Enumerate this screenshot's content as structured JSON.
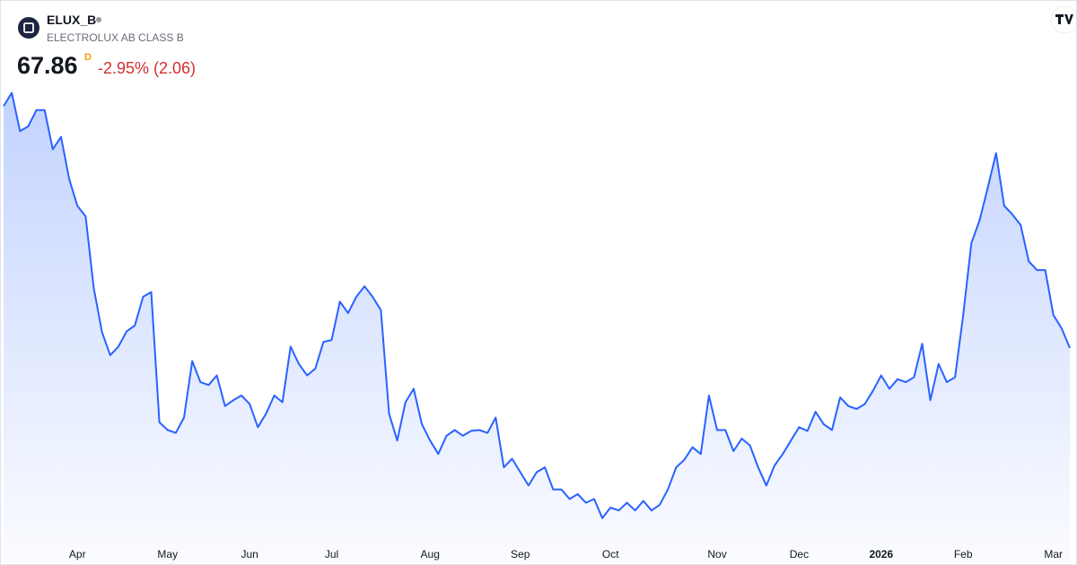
{
  "header": {
    "symbol": "ELUX_B",
    "description": "ELECTROLUX AB CLASS B",
    "price": 67.86,
    "interval": "D",
    "change": "-2.95% (2.06)"
  },
  "chart_data": {
    "type": "area",
    "categories": [
      null,
      null,
      null,
      null,
      null,
      null,
      null,
      null,
      null,
      "Apr",
      null,
      null,
      null,
      null,
      null,
      null,
      null,
      null,
      null,
      null,
      "May",
      null,
      null,
      null,
      null,
      null,
      null,
      null,
      null,
      null,
      "Jun",
      null,
      null,
      null,
      null,
      null,
      null,
      null,
      null,
      null,
      "Jul",
      null,
      null,
      null,
      null,
      null,
      null,
      null,
      null,
      null,
      null,
      null,
      "Aug",
      null,
      null,
      null,
      null,
      null,
      null,
      null,
      null,
      null,
      null,
      "Sep",
      null,
      null,
      null,
      null,
      null,
      null,
      null,
      null,
      null,
      null,
      "Oct",
      null,
      null,
      null,
      null,
      null,
      null,
      null,
      null,
      null,
      null,
      null,
      null,
      "Nov",
      null,
      null,
      null,
      null,
      null,
      null,
      null,
      null,
      null,
      "Dec",
      null,
      null,
      null,
      null,
      null,
      null,
      null,
      null,
      null,
      "2026",
      null,
      null,
      null,
      null,
      null,
      null,
      null,
      null,
      null,
      "Feb",
      null,
      null,
      null,
      null,
      null,
      null,
      null,
      null,
      null,
      null,
      "Mar",
      null,
      null
    ],
    "values": [
      93.1,
      94.5,
      90.5,
      91.0,
      92.7,
      92.7,
      88.6,
      89.9,
      85.5,
      82.7,
      81.6,
      74.1,
      69.5,
      67.1,
      68.0,
      69.6,
      70.2,
      73.2,
      73.7,
      60.1,
      59.3,
      59.0,
      60.6,
      66.5,
      64.3,
      64.0,
      65.0,
      61.8,
      62.4,
      62.9,
      62.0,
      59.6,
      61.0,
      62.9,
      62.2,
      68.0,
      66.2,
      65.0,
      65.7,
      68.5,
      68.7,
      72.7,
      71.5,
      73.2,
      74.3,
      73.2,
      71.8,
      61.0,
      58.2,
      62.2,
      63.6,
      59.9,
      58.2,
      56.8,
      58.7,
      59.3,
      58.7,
      59.2,
      59.3,
      59.0,
      60.6,
      55.4,
      56.3,
      54.9,
      53.5,
      54.9,
      55.4,
      53.1,
      53.1,
      52.1,
      52.6,
      51.7,
      52.1,
      50.1,
      51.2,
      50.9,
      51.7,
      50.9,
      51.9,
      50.9,
      51.5,
      53.1,
      55.4,
      56.2,
      57.5,
      56.8,
      62.9,
      59.3,
      59.3,
      57.1,
      58.4,
      57.7,
      55.4,
      53.5,
      55.6,
      56.8,
      58.2,
      59.6,
      59.2,
      61.2,
      59.9,
      59.3,
      62.7,
      61.8,
      61.5,
      62.0,
      63.4,
      65.0,
      63.6,
      64.6,
      64.3,
      64.8,
      68.3,
      62.4,
      66.2,
      64.3,
      64.8,
      71.3,
      78.8,
      81.2,
      84.6,
      88.2,
      82.7,
      81.8,
      80.7,
      76.9,
      76.0,
      76.0,
      71.3,
      69.9,
      67.86
    ],
    "color": "#2962ff",
    "ylim": [
      45.3,
      95.2
    ]
  }
}
